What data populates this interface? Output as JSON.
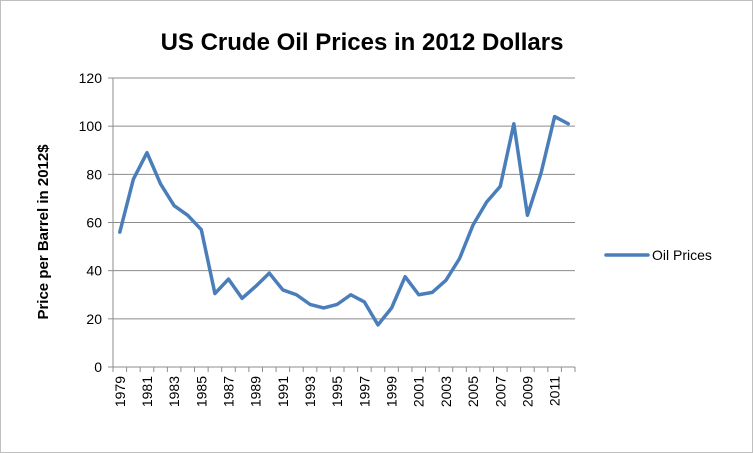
{
  "chart_data": {
    "type": "line",
    "title": "US Crude Oil Prices in 2012 Dollars",
    "xlabel": "",
    "ylabel": "Price per Barrel in 2012$",
    "x": [
      1979,
      1980,
      1981,
      1982,
      1983,
      1984,
      1985,
      1986,
      1987,
      1988,
      1989,
      1990,
      1991,
      1992,
      1993,
      1994,
      1995,
      1996,
      1997,
      1998,
      1999,
      2000,
      2001,
      2002,
      2003,
      2004,
      2005,
      2006,
      2007,
      2008,
      2009,
      2010,
      2011,
      2012
    ],
    "x_tick_labels": [
      "1979",
      "1981",
      "1983",
      "1985",
      "1987",
      "1989",
      "1991",
      "1993",
      "1995",
      "1997",
      "1999",
      "2001",
      "2003",
      "2005",
      "2007",
      "2009",
      "2011"
    ],
    "ylim": [
      0,
      120
    ],
    "y_ticks": [
      0,
      20,
      40,
      60,
      80,
      100,
      120
    ],
    "grid": "horizontal",
    "legend_position": "right",
    "series": [
      {
        "name": "Oil Prices",
        "color": "#4a7ebb",
        "values": [
          56,
          78,
          89,
          76,
          67,
          63,
          57,
          30.5,
          36.5,
          28.5,
          33.5,
          39,
          32,
          30,
          26,
          24.5,
          26,
          30,
          27,
          17.5,
          24.5,
          37.5,
          30,
          31,
          36,
          45,
          59,
          68.5,
          75,
          101,
          63,
          80.5,
          104,
          101
        ]
      }
    ]
  }
}
